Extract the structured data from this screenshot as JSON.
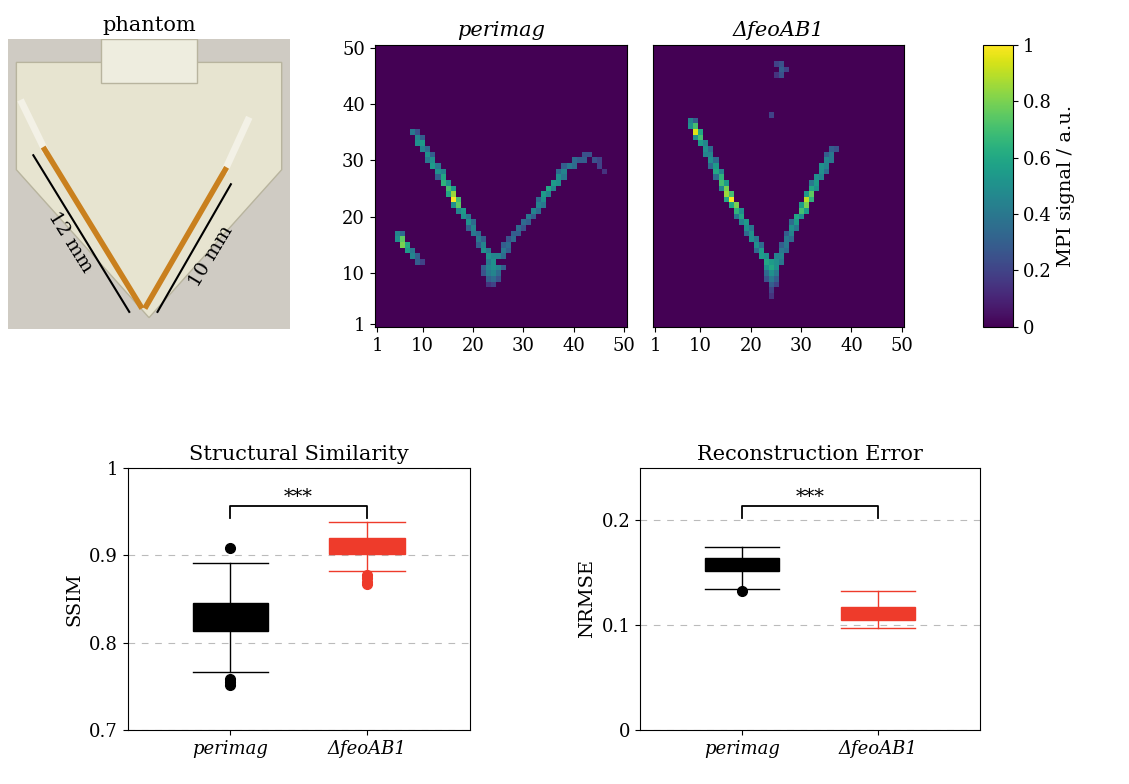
{
  "chart_data": [
    {
      "type": "diagram",
      "title": "phantom",
      "labels": [
        "12 mm",
        "10 mm"
      ]
    },
    {
      "type": "heatmap",
      "title": "perimag",
      "xlim": [
        0.5,
        50.5
      ],
      "ylim": [
        0.5,
        50.5
      ],
      "xticks": [
        1,
        10,
        20,
        30,
        40,
        50
      ],
      "yticks": [
        1,
        10,
        20,
        30,
        40,
        50
      ],
      "cells": [
        [
          8,
          35,
          0.4
        ],
        [
          9,
          35,
          0.25
        ],
        [
          9,
          34,
          0.45
        ],
        [
          10,
          34,
          0.3
        ],
        [
          9,
          33,
          0.5
        ],
        [
          10,
          33,
          0.55
        ],
        [
          10,
          32,
          0.45
        ],
        [
          11,
          32,
          0.35
        ],
        [
          11,
          31,
          0.5
        ],
        [
          12,
          31,
          0.3
        ],
        [
          11,
          30,
          0.4
        ],
        [
          12,
          30,
          0.5
        ],
        [
          12,
          29,
          0.55
        ],
        [
          13,
          29,
          0.4
        ],
        [
          13,
          28,
          0.5
        ],
        [
          14,
          28,
          0.45
        ],
        [
          14,
          27,
          0.6
        ],
        [
          13,
          27,
          0.3
        ],
        [
          14,
          26,
          0.65
        ],
        [
          15,
          26,
          0.5
        ],
        [
          15,
          25,
          0.7
        ],
        [
          16,
          25,
          0.55
        ],
        [
          16,
          24,
          0.85
        ],
        [
          15,
          24,
          0.6
        ],
        [
          16,
          23,
          1
        ],
        [
          17,
          23,
          0.7
        ],
        [
          17,
          22,
          0.75
        ],
        [
          16,
          22,
          0.5
        ],
        [
          18,
          21,
          0.55
        ],
        [
          17,
          21,
          0.45
        ],
        [
          18,
          20,
          0.5
        ],
        [
          19,
          20,
          0.4
        ],
        [
          19,
          19,
          0.5
        ],
        [
          20,
          19,
          0.35
        ],
        [
          20,
          18,
          0.45
        ],
        [
          19,
          18,
          0.3
        ],
        [
          20,
          17,
          0.4
        ],
        [
          21,
          17,
          0.35
        ],
        [
          21,
          16,
          0.4
        ],
        [
          22,
          16,
          0.3
        ],
        [
          22,
          15,
          0.45
        ],
        [
          21,
          15,
          0.3
        ],
        [
          22,
          14,
          0.5
        ],
        [
          23,
          14,
          0.4
        ],
        [
          23,
          13,
          0.5
        ],
        [
          24,
          13,
          0.45
        ],
        [
          24,
          12,
          0.5
        ],
        [
          23,
          12,
          0.4
        ],
        [
          22,
          11,
          0.3
        ],
        [
          23,
          11,
          0.45
        ],
        [
          24,
          11,
          0.5
        ],
        [
          25,
          11,
          0.45
        ],
        [
          26,
          11,
          0.3
        ],
        [
          22,
          10,
          0.25
        ],
        [
          23,
          10,
          0.4
        ],
        [
          24,
          10,
          0.45
        ],
        [
          25,
          10,
          0.35
        ],
        [
          23,
          9,
          0.3
        ],
        [
          24,
          9,
          0.35
        ],
        [
          25,
          9,
          0.25
        ],
        [
          24,
          8,
          0.2
        ],
        [
          23,
          8,
          0.15
        ],
        [
          25,
          13,
          0.45
        ],
        [
          26,
          13,
          0.35
        ],
        [
          26,
          14,
          0.4
        ],
        [
          27,
          14,
          0.3
        ],
        [
          27,
          15,
          0.35
        ],
        [
          26,
          15,
          0.3
        ],
        [
          28,
          16,
          0.35
        ],
        [
          27,
          16,
          0.25
        ],
        [
          28,
          17,
          0.3
        ],
        [
          29,
          17,
          0.3
        ],
        [
          29,
          18,
          0.35
        ],
        [
          30,
          18,
          0.25
        ],
        [
          30,
          19,
          0.35
        ],
        [
          31,
          19,
          0.3
        ],
        [
          31,
          20,
          0.4
        ],
        [
          32,
          20,
          0.3
        ],
        [
          32,
          21,
          0.45
        ],
        [
          33,
          21,
          0.35
        ],
        [
          33,
          22,
          0.45
        ],
        [
          34,
          22,
          0.4
        ],
        [
          34,
          23,
          0.5
        ],
        [
          33,
          23,
          0.35
        ],
        [
          34,
          24,
          0.55
        ],
        [
          35,
          24,
          0.45
        ],
        [
          35,
          25,
          0.6
        ],
        [
          36,
          25,
          0.45
        ],
        [
          36,
          26,
          0.55
        ],
        [
          37,
          26,
          0.5
        ],
        [
          37,
          27,
          0.5
        ],
        [
          38,
          27,
          0.4
        ],
        [
          38,
          28,
          0.45
        ],
        [
          37,
          28,
          0.35
        ],
        [
          39,
          29,
          0.4
        ],
        [
          38,
          29,
          0.3
        ],
        [
          40,
          29,
          0.35
        ],
        [
          40,
          30,
          0.35
        ],
        [
          41,
          30,
          0.3
        ],
        [
          42,
          30,
          0.3
        ],
        [
          42,
          31,
          0.25
        ],
        [
          43,
          31,
          0.25
        ],
        [
          44,
          30,
          0.25
        ],
        [
          45,
          30,
          0.2
        ],
        [
          45,
          29,
          0.2
        ],
        [
          46,
          28,
          0.15
        ],
        [
          5,
          17,
          0.45
        ],
        [
          6,
          17,
          0.35
        ],
        [
          5,
          16,
          0.5
        ],
        [
          6,
          16,
          0.75
        ],
        [
          6,
          15,
          0.8
        ],
        [
          7,
          15,
          0.6
        ],
        [
          7,
          14,
          0.55
        ],
        [
          8,
          14,
          0.4
        ],
        [
          8,
          13,
          0.45
        ],
        [
          9,
          13,
          0.3
        ],
        [
          9,
          12,
          0.3
        ],
        [
          10,
          12,
          0.2
        ]
      ]
    },
    {
      "type": "heatmap",
      "title": "ΔfeoAB1",
      "xlim": [
        0.5,
        50.5
      ],
      "ylim": [
        0.5,
        50.5
      ],
      "xticks": [
        1,
        10,
        20,
        30,
        40,
        50
      ],
      "tick_labels": "x",
      "cells": [
        [
          8,
          37,
          0.45
        ],
        [
          9,
          37,
          0.3
        ],
        [
          9,
          36,
          0.7
        ],
        [
          8,
          36,
          0.5
        ],
        [
          9,
          35,
          0.95
        ],
        [
          10,
          35,
          0.6
        ],
        [
          10,
          34,
          0.7
        ],
        [
          9,
          34,
          0.5
        ],
        [
          10,
          33,
          0.55
        ],
        [
          11,
          33,
          0.45
        ],
        [
          11,
          32,
          0.5
        ],
        [
          12,
          32,
          0.35
        ],
        [
          11,
          31,
          0.45
        ],
        [
          12,
          31,
          0.45
        ],
        [
          12,
          30,
          0.5
        ],
        [
          13,
          30,
          0.35
        ],
        [
          13,
          29,
          0.55
        ],
        [
          12,
          29,
          0.35
        ],
        [
          13,
          28,
          0.6
        ],
        [
          14,
          28,
          0.45
        ],
        [
          14,
          27,
          0.65
        ],
        [
          13,
          27,
          0.35
        ],
        [
          14,
          26,
          0.7
        ],
        [
          15,
          26,
          0.55
        ],
        [
          15,
          25,
          0.8
        ],
        [
          14,
          25,
          0.45
        ],
        [
          15,
          24,
          0.85
        ],
        [
          16,
          24,
          0.7
        ],
        [
          16,
          23,
          1
        ],
        [
          15,
          23,
          0.6
        ],
        [
          17,
          22,
          0.8
        ],
        [
          16,
          22,
          0.6
        ],
        [
          17,
          21,
          0.65
        ],
        [
          18,
          21,
          0.5
        ],
        [
          18,
          20,
          0.6
        ],
        [
          17,
          20,
          0.4
        ],
        [
          19,
          19,
          0.55
        ],
        [
          18,
          19,
          0.45
        ],
        [
          19,
          18,
          0.5
        ],
        [
          20,
          18,
          0.4
        ],
        [
          20,
          17,
          0.5
        ],
        [
          19,
          17,
          0.35
        ],
        [
          20,
          16,
          0.5
        ],
        [
          21,
          16,
          0.4
        ],
        [
          21,
          15,
          0.5
        ],
        [
          22,
          15,
          0.35
        ],
        [
          22,
          14,
          0.55
        ],
        [
          21,
          14,
          0.35
        ],
        [
          22,
          13,
          0.55
        ],
        [
          23,
          13,
          0.5
        ],
        [
          23,
          12,
          0.6
        ],
        [
          24,
          12,
          0.55
        ],
        [
          23,
          11,
          0.5
        ],
        [
          24,
          11,
          0.6
        ],
        [
          25,
          11,
          0.5
        ],
        [
          24,
          10,
          0.5
        ],
        [
          23,
          10,
          0.35
        ],
        [
          25,
          10,
          0.4
        ],
        [
          24,
          9,
          0.4
        ],
        [
          25,
          9,
          0.3
        ],
        [
          23,
          9,
          0.25
        ],
        [
          24,
          8,
          0.3
        ],
        [
          25,
          8,
          0.2
        ],
        [
          24,
          7,
          0.2
        ],
        [
          24,
          6,
          0.15
        ],
        [
          25,
          12,
          0.5
        ],
        [
          26,
          12,
          0.4
        ],
        [
          26,
          13,
          0.45
        ],
        [
          25,
          13,
          0.45
        ],
        [
          26,
          14,
          0.4
        ],
        [
          27,
          14,
          0.35
        ],
        [
          27,
          15,
          0.4
        ],
        [
          26,
          15,
          0.3
        ],
        [
          27,
          16,
          0.4
        ],
        [
          28,
          16,
          0.35
        ],
        [
          28,
          17,
          0.45
        ],
        [
          27,
          17,
          0.3
        ],
        [
          28,
          18,
          0.5
        ],
        [
          29,
          18,
          0.4
        ],
        [
          29,
          19,
          0.55
        ],
        [
          28,
          19,
          0.35
        ],
        [
          29,
          20,
          0.6
        ],
        [
          30,
          20,
          0.5
        ],
        [
          30,
          21,
          0.7
        ],
        [
          31,
          21,
          0.55
        ],
        [
          31,
          22,
          0.8
        ],
        [
          30,
          22,
          0.55
        ],
        [
          31,
          23,
          0.9
        ],
        [
          32,
          23,
          0.65
        ],
        [
          32,
          24,
          0.75
        ],
        [
          31,
          24,
          0.55
        ],
        [
          32,
          25,
          0.6
        ],
        [
          33,
          25,
          0.5
        ],
        [
          33,
          26,
          0.55
        ],
        [
          32,
          26,
          0.4
        ],
        [
          33,
          27,
          0.5
        ],
        [
          34,
          27,
          0.45
        ],
        [
          34,
          28,
          0.5
        ],
        [
          35,
          28,
          0.35
        ],
        [
          34,
          29,
          0.5
        ],
        [
          35,
          29,
          0.45
        ],
        [
          35,
          30,
          0.45
        ],
        [
          36,
          30,
          0.4
        ],
        [
          36,
          31,
          0.4
        ],
        [
          35,
          31,
          0.3
        ],
        [
          36,
          32,
          0.3
        ],
        [
          37,
          32,
          0.25
        ],
        [
          25,
          47,
          0.2
        ],
        [
          26,
          47,
          0.25
        ],
        [
          26,
          46,
          0.3
        ],
        [
          27,
          46,
          0.2
        ],
        [
          26,
          45,
          0.25
        ],
        [
          25,
          45,
          0.15
        ],
        [
          24,
          38,
          0.2
        ]
      ]
    },
    {
      "type": "colorbar",
      "label": "MPI signal / a.u.",
      "range": [
        0,
        1
      ],
      "ticks": [
        0,
        0.2,
        0.4,
        0.6,
        0.8,
        1
      ]
    },
    {
      "type": "box",
      "title": "Structural Similarity",
      "ylabel": "SSIM",
      "ylim": [
        0.7,
        1
      ],
      "yticks": [
        0.7,
        0.8,
        0.9,
        1
      ],
      "grid": true,
      "annotation": "***",
      "series": [
        {
          "name": "perimag",
          "color": "#000000",
          "q1": 0.813,
          "median": 0.83,
          "q3": 0.845,
          "whislo": 0.766,
          "whishi": 0.891,
          "fliers": [
            0.908,
            0.758,
            0.755,
            0.752
          ]
        },
        {
          "name": "ΔfeoAB1",
          "color": "#ee3b2b",
          "q1": 0.902,
          "median": 0.912,
          "q3": 0.92,
          "whislo": 0.882,
          "whishi": 0.938,
          "fliers": [
            0.878,
            0.874,
            0.87,
            0.867
          ]
        }
      ]
    },
    {
      "type": "box",
      "title": "Reconstruction Error",
      "ylabel": "NRMSE",
      "ylim": [
        0,
        0.25
      ],
      "yticks": [
        0,
        0.1,
        0.2
      ],
      "grid": true,
      "annotation": "***",
      "series": [
        {
          "name": "perimag",
          "color": "#000000",
          "q1": 0.152,
          "median": 0.158,
          "q3": 0.164,
          "whislo": 0.135,
          "whishi": 0.175,
          "fliers": [
            0.133
          ]
        },
        {
          "name": "ΔfeoAB1",
          "color": "#ee3b2b",
          "q1": 0.105,
          "median": 0.111,
          "q3": 0.117,
          "whislo": 0.097,
          "whishi": 0.133,
          "fliers": []
        }
      ]
    }
  ]
}
